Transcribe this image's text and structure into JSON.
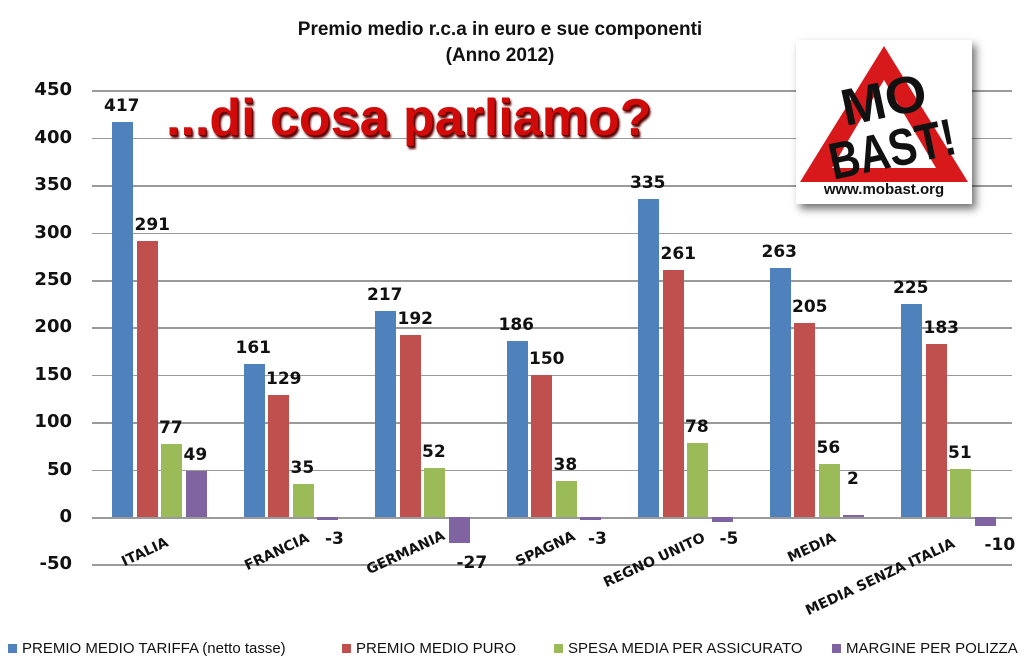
{
  "chart_data": {
    "type": "bar",
    "title": "Premio medio r.c.a in euro e sue componenti",
    "subtitle": "(Anno 2012)",
    "xlabel": "",
    "ylabel": "",
    "ylim": [
      -50,
      450
    ],
    "yticks": [
      "450",
      "400",
      "350",
      "300",
      "250",
      "200",
      "150",
      "100",
      "50",
      "0",
      "-50"
    ],
    "grid": true,
    "legend_position": "bottom",
    "categories": [
      "ITALIA",
      "FRANCIA",
      "GERMANIA",
      "SPAGNA",
      "REGNO UNITO",
      "MEDIA",
      "MEDIA SENZA ITALIA"
    ],
    "series": [
      {
        "name": "PREMIO MEDIO TARIFFA (netto tasse)",
        "color": "#4f81bd",
        "values": [
          417,
          161,
          217,
          186,
          335,
          263,
          225
        ]
      },
      {
        "name": "PREMIO MEDIO PURO",
        "color": "#c0504d",
        "values": [
          291,
          129,
          192,
          150,
          261,
          205,
          183
        ]
      },
      {
        "name": "SPESA MEDIA PER ASSICURATO",
        "color": "#9bbb59",
        "values": [
          77,
          35,
          52,
          38,
          78,
          56,
          51
        ]
      },
      {
        "name": "MARGINE  PER POLIZZA",
        "color": "#8064a2",
        "values": [
          49,
          -3,
          -27,
          -3,
          -5,
          2,
          -10
        ]
      }
    ],
    "annotations": [
      "...di cosa parliamo?"
    ]
  },
  "header": {
    "title": "Premio medio r.c.a in euro e sue componenti",
    "subtitle": "(Anno 2012)"
  },
  "overlay": {
    "slogan": "...di cosa parliamo?",
    "logo": {
      "line1": "MO",
      "line2": "BAST!",
      "url": "www.mobast.org",
      "triangle_color": "#d7191c"
    }
  },
  "legend": [
    {
      "label": "PREMIO MEDIO TARIFFA (netto tasse)",
      "color": "#4f81bd"
    },
    {
      "label": "PREMIO MEDIO PURO",
      "color": "#c0504d"
    },
    {
      "label": "SPESA MEDIA PER ASSICURATO",
      "color": "#9bbb59"
    },
    {
      "label": "MARGINE  PER POLIZZA",
      "color": "#8064a2"
    }
  ]
}
